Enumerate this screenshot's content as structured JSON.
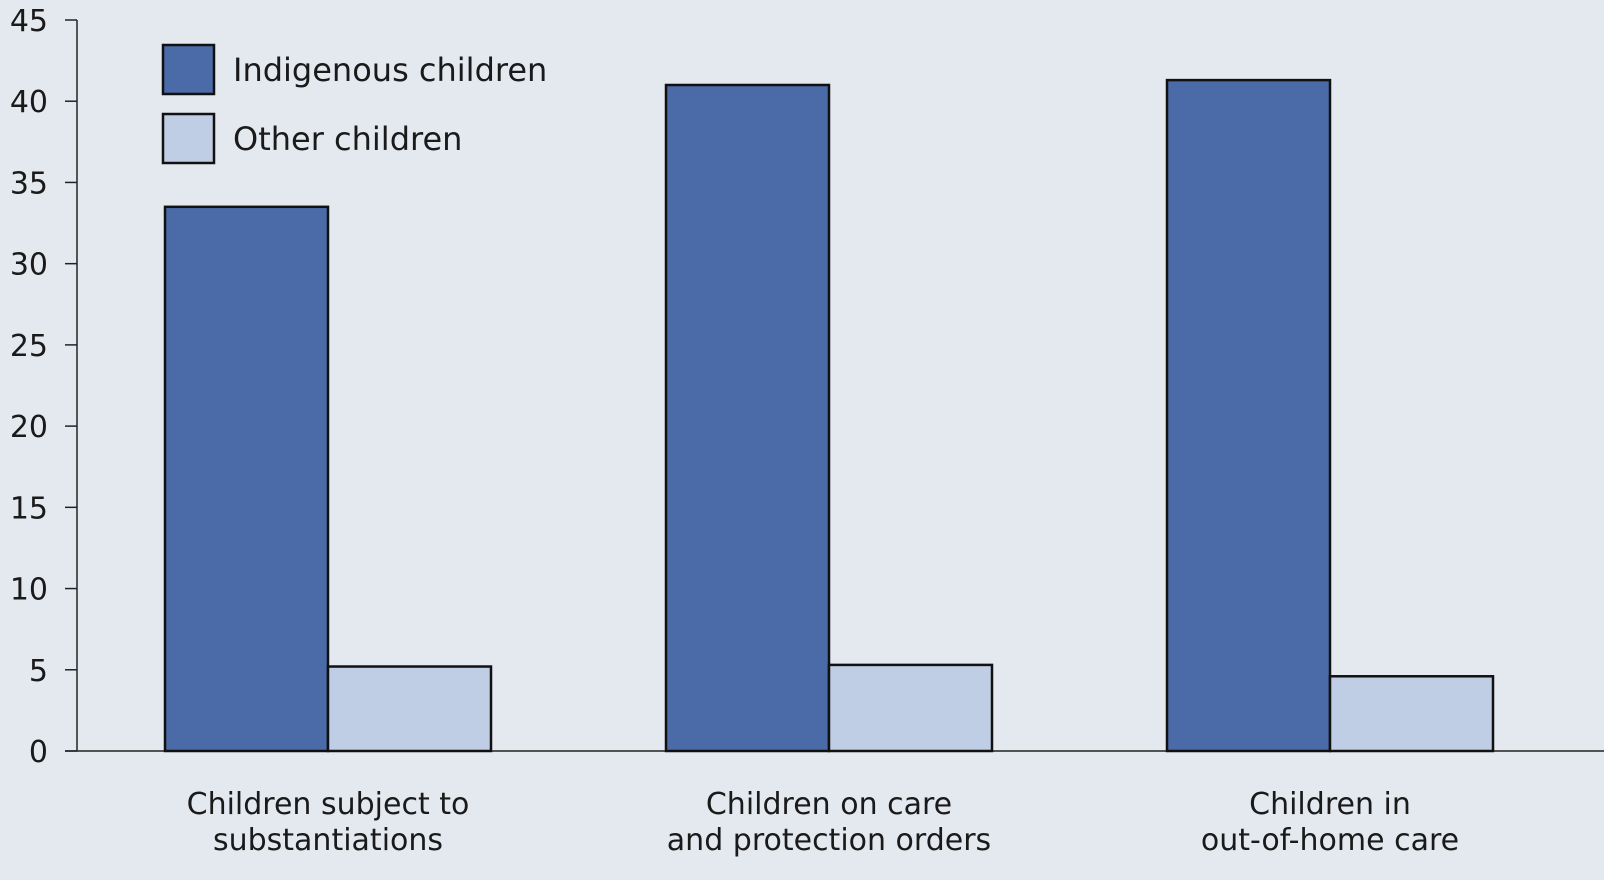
{
  "chart_data": {
    "type": "bar",
    "title": "",
    "xlabel": "",
    "ylabel": "",
    "ylim": [
      0,
      45
    ],
    "yticks": [
      0,
      5,
      10,
      15,
      20,
      25,
      30,
      35,
      40,
      45
    ],
    "grid": false,
    "legend_position": "top-left",
    "categories": [
      [
        "Children subject to",
        "substantiations"
      ],
      [
        "Children on care",
        "and protection orders"
      ],
      [
        "Children in",
        "out-of-home care"
      ]
    ],
    "series": [
      {
        "name": "Indigenous children",
        "color": "#4a6aa8",
        "values": [
          33.5,
          41,
          41.3
        ]
      },
      {
        "name": "Other children",
        "color": "#bfcee4",
        "values": [
          5.2,
          5.3,
          4.6
        ]
      }
    ]
  }
}
